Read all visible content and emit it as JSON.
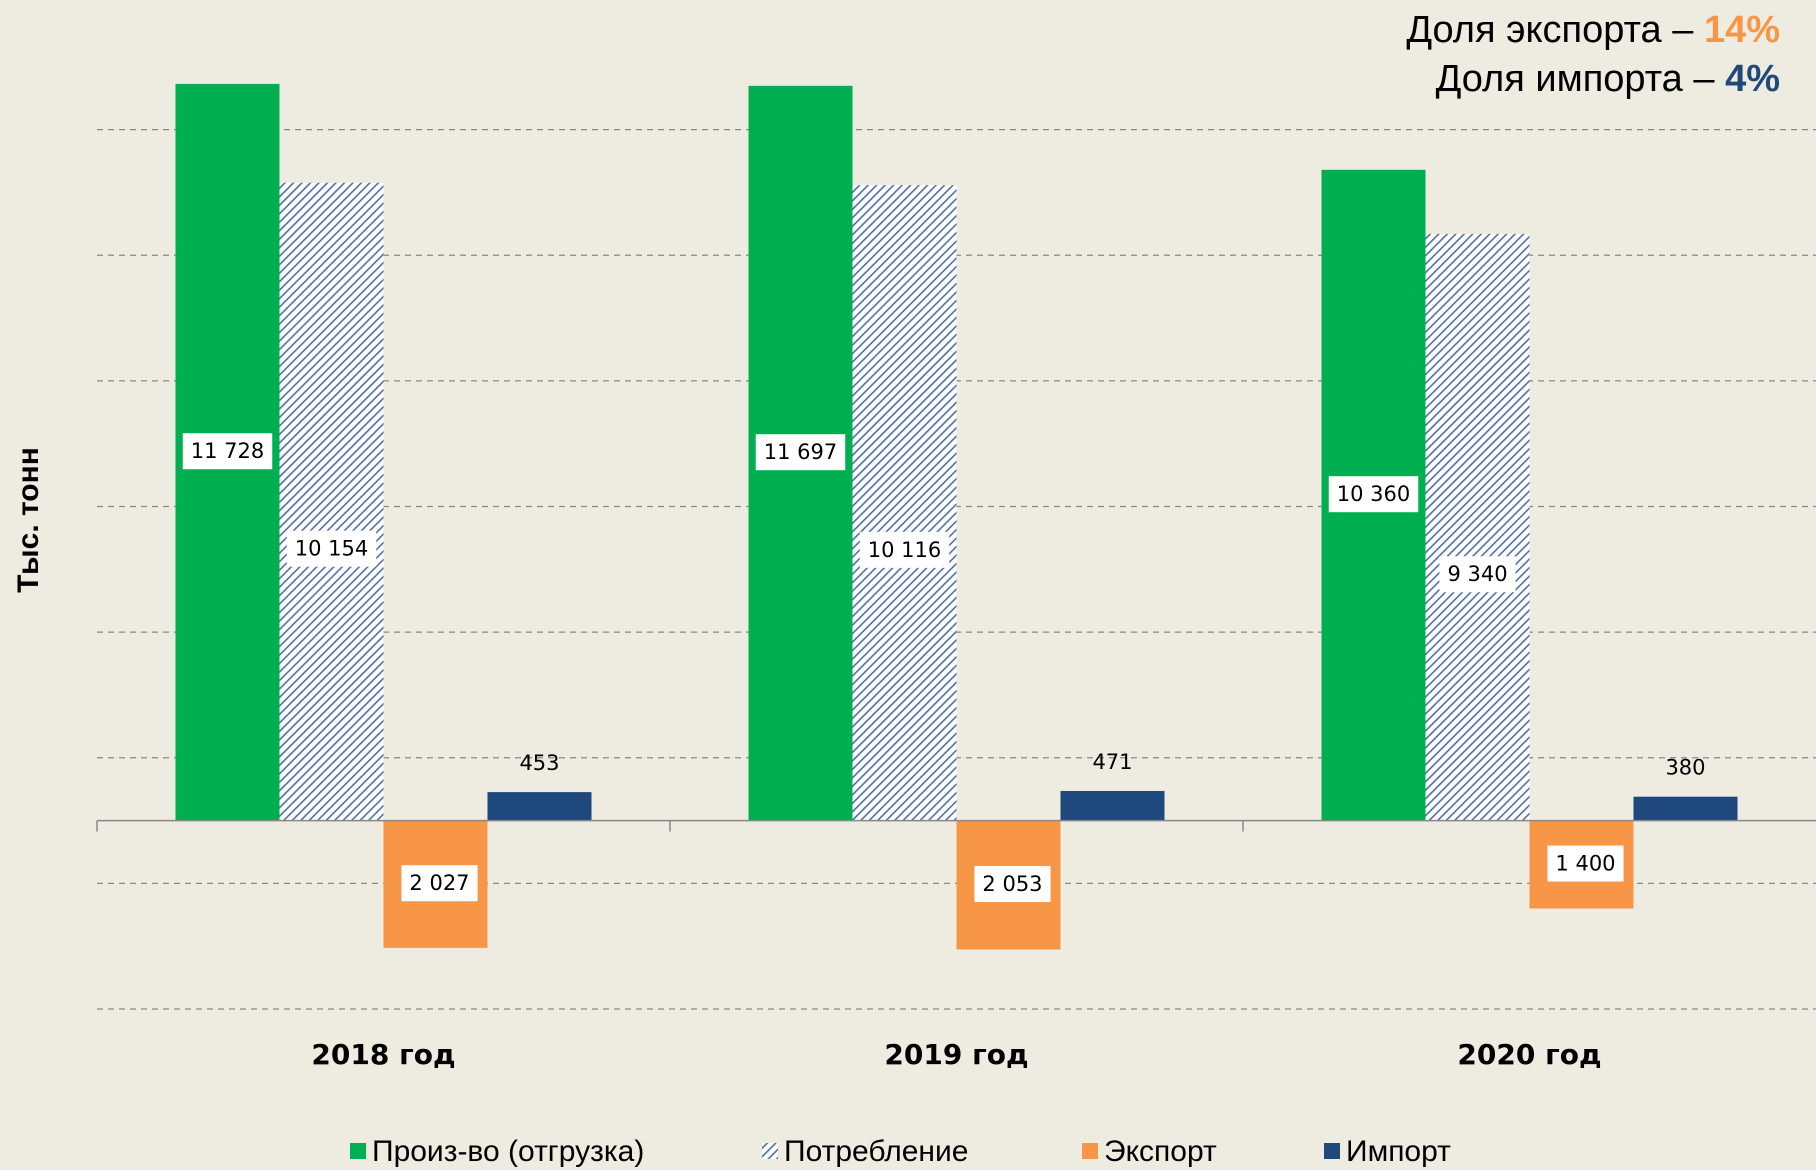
{
  "chart_data": {
    "type": "bar",
    "y_label": "Тыс. тонн",
    "annotations": [
      {
        "text": "Доля экспорта – ",
        "highlight": "14%",
        "color": "#f79646"
      },
      {
        "text": "Доля импорта – ",
        "highlight": "4%",
        "color": "#1f497d"
      }
    ],
    "categories": [
      "2018 год",
      "2019 год",
      "2020 год"
    ],
    "series": [
      {
        "name": "Произ-во (отгрузка)",
        "color": "#00b050",
        "pattern": "solid",
        "values": [
          11728,
          11697,
          10360
        ],
        "value_labels": [
          "11 728",
          "11 697",
          "10 360"
        ]
      },
      {
        "name": "Потребление",
        "color": "#4f6fa3",
        "pattern": "hatch",
        "values": [
          10154,
          10116,
          9340
        ],
        "value_labels": [
          "10 154",
          "10 116",
          "9 340"
        ]
      },
      {
        "name": "Экспорт",
        "color": "#f79646",
        "pattern": "solid",
        "values": [
          -2027,
          -2053,
          -1400
        ],
        "value_labels": [
          "2 027",
          "2 053",
          "1 400"
        ]
      },
      {
        "name": "Импорт",
        "color": "#1f497d",
        "pattern": "solid",
        "values": [
          453,
          471,
          380
        ],
        "value_labels": [
          "453",
          "471",
          "380"
        ]
      }
    ],
    "ylim": [
      -3000,
      13000
    ],
    "yticks": [
      -3000,
      -1000,
      1000,
      3000,
      5000,
      7000,
      9000,
      11000
    ],
    "grid": true
  }
}
